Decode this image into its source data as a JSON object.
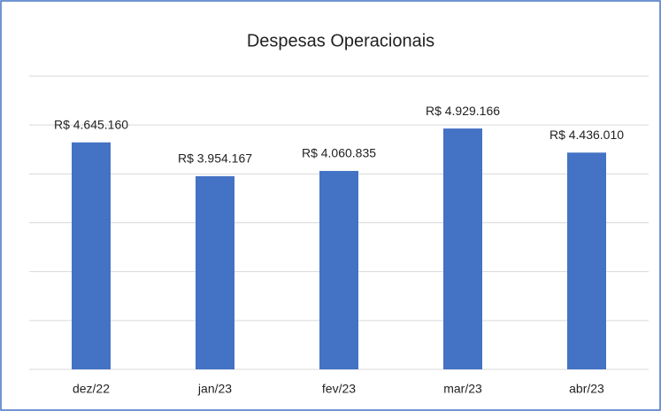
{
  "chart_data": {
    "type": "bar",
    "title": "Despesas Operacionais",
    "categories": [
      "dez/22",
      "jan/23",
      "fev/23",
      "mar/23",
      "abr/23"
    ],
    "values": [
      4645160,
      3954167,
      4060835,
      4929166,
      4436010
    ],
    "value_labels": [
      "R$ 4.645.160",
      "R$ 3.954.167",
      "R$ 4.060.835",
      "R$ 4.929.166",
      "R$ 4.436.010"
    ],
    "color": "#4472c4",
    "ylim": [
      0,
      6000000
    ],
    "yticks": [
      0,
      1000000,
      2000000,
      3000000,
      4000000,
      5000000,
      6000000
    ],
    "grid": true
  }
}
